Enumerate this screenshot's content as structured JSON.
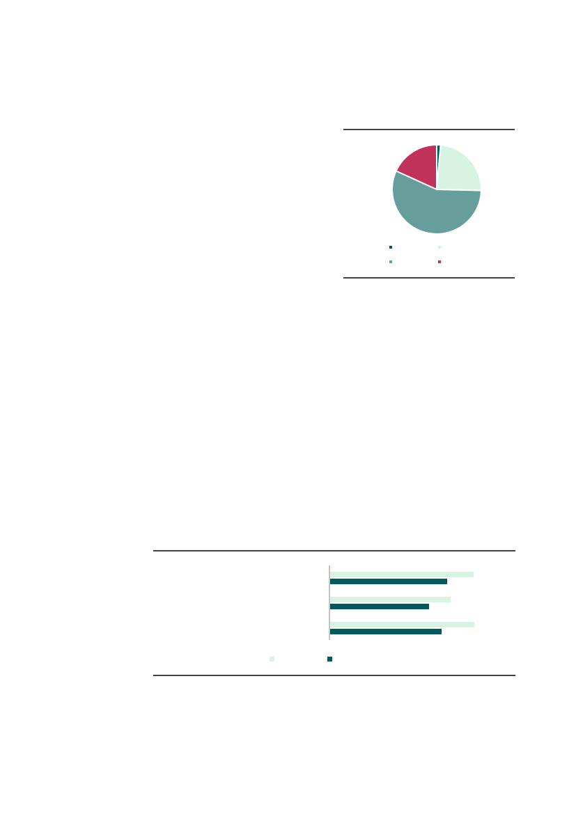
{
  "colors": {
    "dark_teal": "#005a5b",
    "mint": "#d7f4e2",
    "teal": "#669e9c",
    "crimson": "#c0325a",
    "rule": "#000000",
    "axis": "#888888"
  },
  "chart_data": [
    {
      "type": "pie",
      "title": "",
      "legend_placement": "bottom",
      "slices": [
        {
          "value": 1.4,
          "color": "#005a5b"
        },
        {
          "value": 24.0,
          "color": "#d7f4e2"
        },
        {
          "value": 56.4,
          "color": "#669e9c"
        },
        {
          "value": 18.2,
          "color": "#c0325a"
        }
      ]
    },
    {
      "type": "bar",
      "orientation": "horizontal",
      "title": "",
      "xlabel": "",
      "ylabel": "",
      "xlim": [
        0,
        260
      ],
      "grid": false,
      "legend_placement": "bottom",
      "categories": [
        "",
        "",
        ""
      ],
      "series": [
        {
          "color": "#d7f4e2",
          "values": [
            206,
            173,
            207
          ]
        },
        {
          "color": "#005a5b",
          "values": [
            168,
            142,
            160
          ]
        }
      ]
    }
  ]
}
